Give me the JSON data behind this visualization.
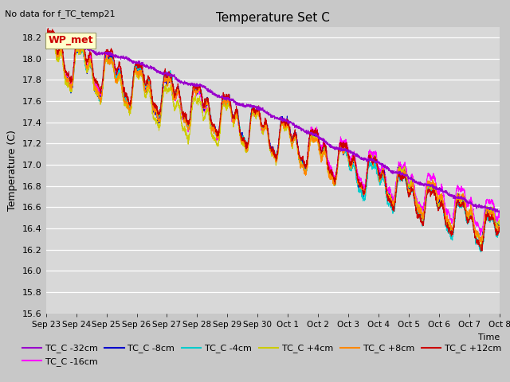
{
  "title": "Temperature Set C",
  "subtitle": "No data for f_TC_temp21",
  "ylabel": "Temperature (C)",
  "ylim": [
    15.6,
    18.3
  ],
  "yticks": [
    15.6,
    15.8,
    16.0,
    16.2,
    16.4,
    16.6,
    16.8,
    17.0,
    17.2,
    17.4,
    17.6,
    17.8,
    18.0,
    18.2
  ],
  "fig_bg_color": "#c8c8c8",
  "plot_bg_color": "#d8d8d8",
  "annotation_text": "WP_met",
  "annotation_bg": "#ffffcc",
  "annotation_fg": "#cc0000",
  "series": [
    {
      "label": "TC_C -32cm",
      "color": "#9900cc"
    },
    {
      "label": "TC_C -16cm",
      "color": "#ff00ff"
    },
    {
      "label": "TC_C -8cm",
      "color": "#0000cc"
    },
    {
      "label": "TC_C -4cm",
      "color": "#00cccc"
    },
    {
      "label": "TC_C +4cm",
      "color": "#cccc00"
    },
    {
      "label": "TC_C +8cm",
      "color": "#ff8800"
    },
    {
      "label": "TC_C +12cm",
      "color": "#cc0000"
    }
  ],
  "xtick_labels": [
    "Sep 23",
    "Sep 24",
    "Sep 25",
    "Sep 26",
    "Sep 27",
    "Sep 28",
    "Sep 29",
    "Sep 30",
    "Oct 1",
    "Oct 2",
    "Oct 3",
    "Oct 4",
    "Oct 5",
    "Oct 6",
    "Oct 7",
    "Oct 8"
  ],
  "n_points": 3000,
  "end_day": 15.5
}
